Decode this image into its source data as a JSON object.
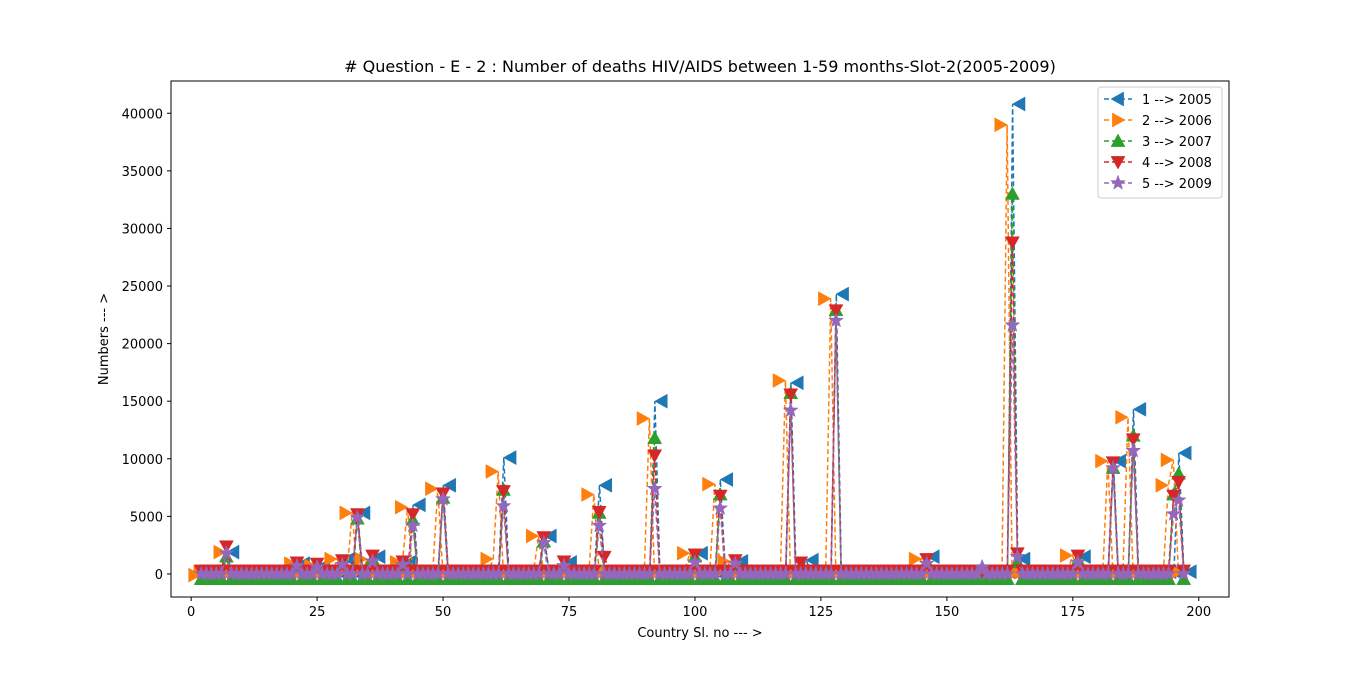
{
  "chart_data": {
    "type": "line",
    "title": "# Question - E - 2 : Number of deaths HIV/AIDS between 1-59 months-Slot-2(2005-2009)",
    "xlabel": "Country Sl. no --- >",
    "ylabel": "Numbers --- >",
    "xlim": [
      -4,
      206
    ],
    "ylim": [
      -2000,
      42800
    ],
    "xticks": [
      0,
      25,
      50,
      75,
      100,
      125,
      150,
      175,
      200
    ],
    "xtick_labels": [
      "0",
      "25",
      "50",
      "75",
      "100",
      "125",
      "150",
      "175",
      "200"
    ],
    "yticks": [
      0,
      5000,
      10000,
      15000,
      20000,
      25000,
      30000,
      35000,
      40000
    ],
    "ytick_labels": [
      "0",
      "5000",
      "10000",
      "15000",
      "20000",
      "25000",
      "30000",
      "35000",
      "40000"
    ],
    "grid": false,
    "legend_position": "top-right",
    "x_range": [
      2,
      197
    ],
    "series": [
      {
        "name": "1 --> 2005",
        "color": "#1f77b4",
        "marker": "triangle-left",
        "offset": 1,
        "baseline": 200,
        "peaks": [
          [
            7,
            1900
          ],
          [
            21,
            900
          ],
          [
            25,
            700
          ],
          [
            30,
            1300
          ],
          [
            33,
            5300
          ],
          [
            36,
            1500
          ],
          [
            42,
            1000
          ],
          [
            44,
            6000
          ],
          [
            50,
            7700
          ],
          [
            62,
            10100
          ],
          [
            70,
            3300
          ],
          [
            74,
            1000
          ],
          [
            81,
            7700
          ],
          [
            92,
            15000
          ],
          [
            100,
            1800
          ],
          [
            105,
            8200
          ],
          [
            108,
            1100
          ],
          [
            119,
            16600
          ],
          [
            122,
            1200
          ],
          [
            128,
            24300
          ],
          [
            146,
            1500
          ],
          [
            163,
            40800
          ],
          [
            164,
            1300
          ],
          [
            176,
            1500
          ],
          [
            183,
            9800
          ],
          [
            187,
            14300
          ],
          [
            195,
            0
          ],
          [
            196,
            10500
          ]
        ]
      },
      {
        "name": "2 --> 2006",
        "color": "#ff7f0e",
        "marker": "triangle-right",
        "offset": -1,
        "baseline": 150,
        "peaks": [
          [
            2,
            -100
          ],
          [
            7,
            1900
          ],
          [
            21,
            900
          ],
          [
            25,
            700
          ],
          [
            29,
            1300
          ],
          [
            32,
            5300
          ],
          [
            35,
            1300
          ],
          [
            42,
            1000
          ],
          [
            43,
            5800
          ],
          [
            49,
            7400
          ],
          [
            60,
            1300
          ],
          [
            61,
            8900
          ],
          [
            69,
            3300
          ],
          [
            80,
            6900
          ],
          [
            91,
            13500
          ],
          [
            99,
            1800
          ],
          [
            104,
            7800
          ],
          [
            107,
            1100
          ],
          [
            118,
            16800
          ],
          [
            120,
            -100
          ],
          [
            127,
            23900
          ],
          [
            145,
            1300
          ],
          [
            162,
            39000
          ],
          [
            163,
            -100
          ],
          [
            175,
            1600
          ],
          [
            182,
            9800
          ],
          [
            186,
            13600
          ],
          [
            194,
            7700
          ],
          [
            195,
            9900
          ]
        ]
      },
      {
        "name": "3 --> 2007",
        "color": "#2ca02c",
        "marker": "triangle-up",
        "offset": 0,
        "baseline": -450,
        "peaks": [
          [
            7,
            1500
          ],
          [
            21,
            600
          ],
          [
            25,
            500
          ],
          [
            30,
            1000
          ],
          [
            33,
            4800
          ],
          [
            36,
            1300
          ],
          [
            42,
            700
          ],
          [
            44,
            4700
          ],
          [
            50,
            6600
          ],
          [
            62,
            7300
          ],
          [
            70,
            2800
          ],
          [
            74,
            800
          ],
          [
            81,
            5300
          ],
          [
            92,
            11800
          ],
          [
            100,
            1500
          ],
          [
            105,
            6900
          ],
          [
            108,
            800
          ],
          [
            119,
            15700
          ],
          [
            128,
            22900
          ],
          [
            146,
            1000
          ],
          [
            163,
            33000
          ],
          [
            164,
            1000
          ],
          [
            176,
            1200
          ],
          [
            183,
            9200
          ],
          [
            187,
            12000
          ],
          [
            195,
            6900
          ],
          [
            196,
            8700
          ]
        ]
      },
      {
        "name": "4 --> 2008",
        "color": "#d62728",
        "marker": "triangle-down",
        "offset": 0,
        "baseline": 300,
        "peaks": [
          [
            7,
            2400
          ],
          [
            21,
            1000
          ],
          [
            25,
            900
          ],
          [
            30,
            1200
          ],
          [
            33,
            5200
          ],
          [
            36,
            1600
          ],
          [
            42,
            1100
          ],
          [
            44,
            5200
          ],
          [
            50,
            7000
          ],
          [
            62,
            7200
          ],
          [
            70,
            3200
          ],
          [
            74,
            1100
          ],
          [
            81,
            5400
          ],
          [
            82,
            1500
          ],
          [
            92,
            10300
          ],
          [
            100,
            1700
          ],
          [
            105,
            6800
          ],
          [
            108,
            1200
          ],
          [
            119,
            15600
          ],
          [
            121,
            1000
          ],
          [
            128,
            22900
          ],
          [
            146,
            1300
          ],
          [
            163,
            28800
          ],
          [
            164,
            1800
          ],
          [
            176,
            1600
          ],
          [
            183,
            9700
          ],
          [
            187,
            11700
          ],
          [
            195,
            6800
          ],
          [
            196,
            8000
          ]
        ]
      },
      {
        "name": "5 --> 2009",
        "color": "#9467bd",
        "marker": "star",
        "offset": 0,
        "baseline": 0,
        "peaks": [
          [
            7,
            1800
          ],
          [
            21,
            700
          ],
          [
            25,
            600
          ],
          [
            30,
            800
          ],
          [
            33,
            4900
          ],
          [
            36,
            1100
          ],
          [
            42,
            800
          ],
          [
            44,
            4200
          ],
          [
            50,
            6500
          ],
          [
            62,
            5900
          ],
          [
            70,
            2700
          ],
          [
            74,
            700
          ],
          [
            81,
            4200
          ],
          [
            92,
            7400
          ],
          [
            100,
            1000
          ],
          [
            105,
            5700
          ],
          [
            108,
            900
          ],
          [
            119,
            14200
          ],
          [
            128,
            22000
          ],
          [
            146,
            900
          ],
          [
            157,
            600
          ],
          [
            163,
            21600
          ],
          [
            164,
            1500
          ],
          [
            176,
            1000
          ],
          [
            183,
            9200
          ],
          [
            187,
            10700
          ],
          [
            195,
            5200
          ],
          [
            196,
            6400
          ]
        ]
      }
    ]
  }
}
